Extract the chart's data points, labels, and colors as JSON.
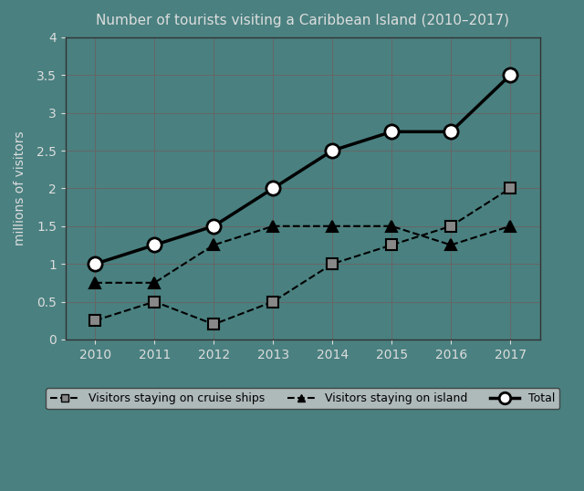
{
  "title": "Number of tourists visiting a Caribbean Island (2010–2017)",
  "xlabel": "",
  "ylabel": "millions of visitors",
  "years": [
    2010,
    2011,
    2012,
    2013,
    2014,
    2015,
    2016,
    2017
  ],
  "cruise_ships": [
    0.25,
    0.5,
    0.2,
    0.5,
    1.0,
    1.25,
    1.5,
    2.0
  ],
  "island": [
    0.75,
    0.75,
    1.25,
    1.5,
    1.5,
    1.5,
    1.25,
    1.5
  ],
  "total": [
    1.0,
    1.25,
    1.5,
    2.0,
    2.5,
    2.75,
    2.75,
    3.5
  ],
  "ylim": [
    0,
    4
  ],
  "yticks": [
    0,
    0.5,
    1.0,
    1.5,
    2.0,
    2.5,
    3.0,
    3.5,
    4.0
  ],
  "ytick_labels": [
    "0",
    "0.5",
    "1",
    "1.5",
    "2",
    "2.5",
    "3",
    "3.5",
    "4"
  ],
  "background_color": "#4a8080",
  "plot_bg_color": "#4a8080",
  "line_color": "#000000",
  "grid_color": "#666666",
  "text_color": "#dddddd",
  "legend_bg": "#c8c8c8",
  "legend_labels": [
    "Visitors staying on cruise ships",
    "Visitors staying on island",
    "Total"
  ]
}
